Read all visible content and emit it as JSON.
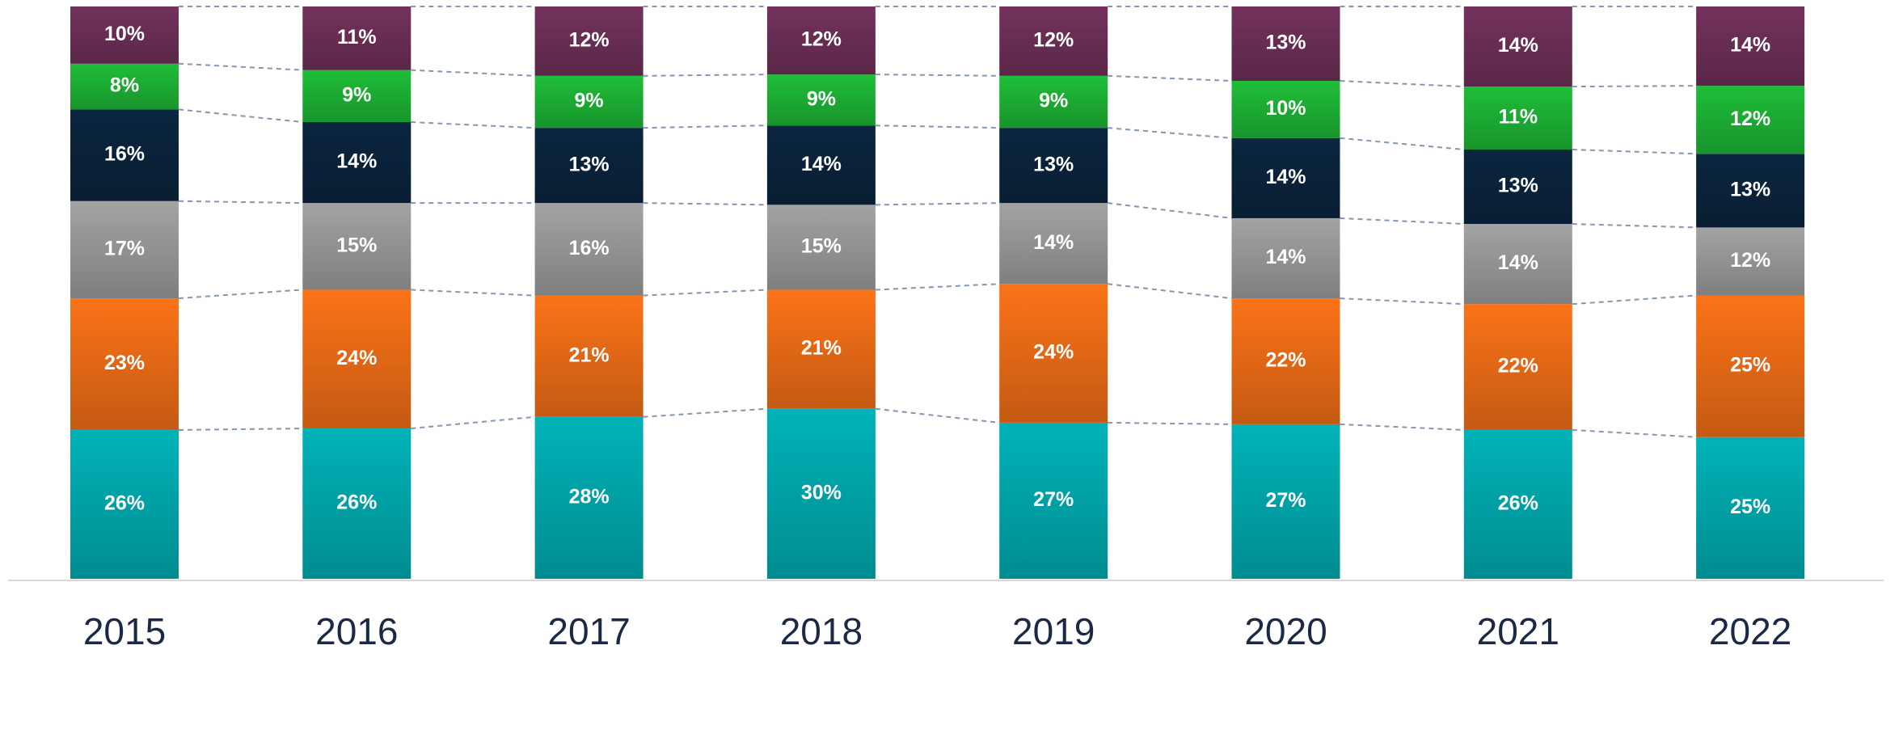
{
  "chart_data": {
    "type": "stacked_bar_100",
    "categories": [
      "2015",
      "2016",
      "2017",
      "2018",
      "2019",
      "2020",
      "2021",
      "2022"
    ],
    "series": [
      {
        "color": "#00b3b8",
        "values": [
          26,
          26,
          28,
          30,
          27,
          27,
          26,
          25
        ],
        "value_labels": [
          "26%",
          "26%",
          "28%",
          "30%",
          "27%",
          "27%",
          "26%",
          "25%"
        ]
      },
      {
        "color": "#fb7318",
        "values": [
          23,
          24,
          21,
          21,
          24,
          22,
          22,
          25
        ],
        "value_labels": [
          "23%",
          "24%",
          "21%",
          "21%",
          "24%",
          "22%",
          "22%",
          "25%"
        ]
      },
      {
        "color": "#a3a3a3",
        "values": [
          17,
          15,
          16,
          15,
          14,
          14,
          14,
          12
        ],
        "value_labels": [
          "17%",
          "15%",
          "16%",
          "15%",
          "14%",
          "14%",
          "14%",
          "12%"
        ]
      },
      {
        "color": "#0b2640",
        "values": [
          16,
          14,
          13,
          14,
          13,
          14,
          13,
          13
        ],
        "value_labels": [
          "16%",
          "14%",
          "13%",
          "14%",
          "13%",
          "14%",
          "13%",
          "13%"
        ]
      },
      {
        "color": "#1fbe38",
        "values": [
          8,
          9,
          9,
          9,
          9,
          10,
          11,
          12
        ],
        "value_labels": [
          "8%",
          "9%",
          "9%",
          "9%",
          "9%",
          "10%",
          "11%",
          "12%"
        ]
      },
      {
        "color": "#73325c",
        "values": [
          10,
          11,
          12,
          12,
          12,
          13,
          14,
          14
        ],
        "value_labels": [
          "10%",
          "11%",
          "12%",
          "12%",
          "12%",
          "13%",
          "14%",
          "14%"
        ]
      }
    ]
  }
}
